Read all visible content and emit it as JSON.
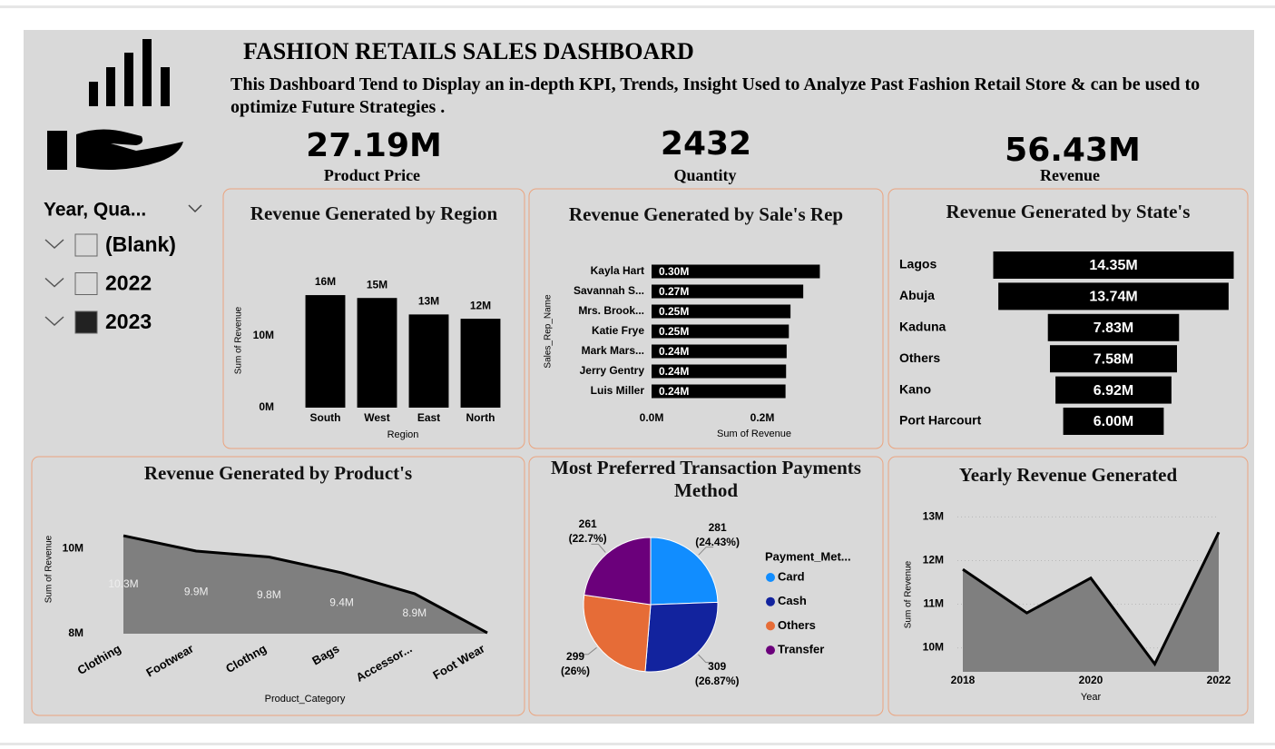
{
  "header": {
    "title": "FASHION RETAILS SALES DASHBOARD",
    "subtitle": "This Dashboard Tend to Display an in-depth KPI, Trends, Insight Used to Analyze Past Fashion Retail Store & can be used to optimize Future Strategies ."
  },
  "kpis": [
    {
      "value": "27.19M",
      "label": "Product Price"
    },
    {
      "value": "2432",
      "label": "Quantity"
    },
    {
      "value": "56.43M",
      "label": "Revenue"
    }
  ],
  "slicer": {
    "title": "Year, Qua...",
    "items": [
      "(Blank)",
      "2022",
      "2023"
    ],
    "checked": [
      false,
      false,
      true
    ]
  },
  "chart_data": [
    {
      "type": "bar",
      "title": "Revenue Generated by Region",
      "x_label": "Region",
      "y_label": "Sum of Revenue",
      "categories": [
        "South",
        "West",
        "East",
        "North"
      ],
      "values": [
        15.7,
        15.3,
        13.0,
        12.4
      ],
      "value_labels": [
        "16M",
        "15M",
        "13M",
        "12M"
      ],
      "color": "#000000",
      "ylim": [
        0,
        19
      ],
      "yticks": [
        {
          "value": 0,
          "label": "0M"
        },
        {
          "value": 10,
          "label": "10M"
        }
      ]
    },
    {
      "type": "barh",
      "title": "Revenue Generated by Sale's Rep",
      "x_label": "Sum of Revenue",
      "y_label": "Sales_Rep_Name",
      "categories": [
        "Kayla Hart",
        "Savannah S...",
        "Mrs. Brook...",
        "Katie Frye",
        "Mark Mars...",
        "Jerry Gentry",
        "Luis Miller"
      ],
      "values": [
        0.304,
        0.274,
        0.251,
        0.248,
        0.244,
        0.243,
        0.242
      ],
      "value_labels": [
        "0.30M",
        "0.27M",
        "0.25M",
        "0.25M",
        "0.24M",
        "0.24M",
        "0.24M"
      ],
      "color": "#000000",
      "xlim": [
        0,
        0.4
      ],
      "xticks": [
        {
          "value": 0,
          "label": "0.0M"
        },
        {
          "value": 0.2,
          "label": "0.2M"
        }
      ]
    },
    {
      "type": "funnel",
      "title": "Revenue Generated by State's",
      "categories": [
        "Lagos",
        "Abuja",
        "Kaduna",
        "Others",
        "Kano",
        "Port Harcourt"
      ],
      "values": [
        14.35,
        13.74,
        7.83,
        7.58,
        6.92,
        6.0
      ],
      "value_labels": [
        "14.35M",
        "13.74M",
        "7.83M",
        "7.58M",
        "6.92M",
        "6.00M"
      ],
      "color": "#000000"
    },
    {
      "type": "area",
      "title": "Revenue Generated by Product's",
      "x_label": "Product_Category",
      "y_label": "Sum of Revenue",
      "categories": [
        "Clothing",
        "Footwear",
        "Clothng",
        "Bags",
        "Accessor...",
        "Foot Wear"
      ],
      "values": [
        10.3,
        9.94,
        9.8,
        9.43,
        8.94,
        8.02
      ],
      "value_labels": [
        "10.3M",
        "9.9M",
        "9.8M",
        "9.4M",
        "8.9M",
        null
      ],
      "color": "#7f7f7f",
      "line_color": "#000000",
      "ylim": [
        8,
        10.6
      ],
      "yticks": [
        {
          "value": 8,
          "label": "8M"
        },
        {
          "value": 10,
          "label": "10M"
        }
      ]
    },
    {
      "type": "pie",
      "title": "Most Preferred Transaction Payments Method",
      "legend_title": "Payment_Met...",
      "categories": [
        "Card",
        "Cash",
        "Others",
        "Transfer"
      ],
      "values": [
        281,
        309,
        299,
        261
      ],
      "percent_labels": [
        "(24.43%)",
        "(26.87%)",
        "(26%)",
        "(22.7%)"
      ],
      "colors": [
        "#118dff",
        "#12239e",
        "#e66c37",
        "#6b007b"
      ],
      "legend": "right"
    },
    {
      "type": "area",
      "title": "Yearly Revenue Generated",
      "x_label": "Year",
      "y_label": "Sum of Revenue",
      "x": [
        2018,
        2019,
        2020,
        2021,
        2022
      ],
      "values": [
        11.8,
        10.8,
        11.6,
        9.63,
        12.65
      ],
      "color": "#7f7f7f",
      "line_color": "#000000",
      "xlim": [
        2018,
        2022
      ],
      "xticks": [
        2018,
        2020,
        2022
      ],
      "ylim": [
        9.45,
        13.3
      ],
      "yticks": [
        {
          "value": 10,
          "label": "10M"
        },
        {
          "value": 11,
          "label": "11M"
        },
        {
          "value": 12,
          "label": "12M"
        },
        {
          "value": 13,
          "label": "13M"
        }
      ],
      "grid": true
    }
  ]
}
